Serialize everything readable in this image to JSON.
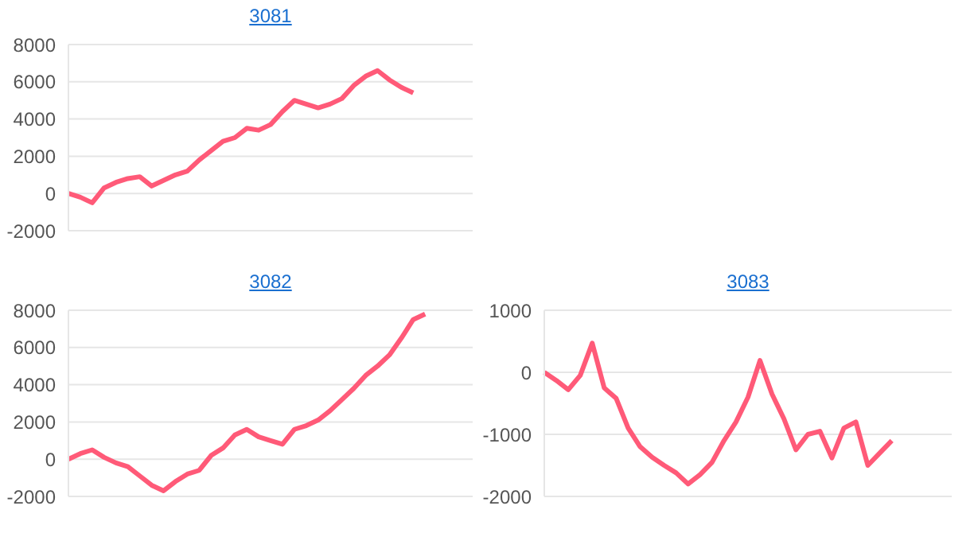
{
  "chart_data": [
    {
      "type": "line",
      "title": "3081",
      "categories": [
        null,
        null,
        null,
        null,
        null,
        null,
        null,
        null,
        null,
        null,
        null,
        null,
        null,
        null,
        null,
        null,
        null,
        null,
        null,
        null,
        null,
        null,
        null,
        null,
        null,
        null,
        null,
        null,
        null,
        null,
        null,
        null,
        null,
        null,
        null
      ],
      "values": [
        0,
        -200,
        -500,
        300,
        600,
        800,
        900,
        400,
        700,
        1000,
        1200,
        1800,
        2300,
        2800,
        3000,
        3500,
        3400,
        3700,
        4400,
        5000,
        4800,
        4600,
        4800,
        5100,
        5800,
        6300,
        6600,
        6100,
        5700,
        5400,
        null,
        null,
        null,
        null,
        null
      ],
      "color": "#ff5a78",
      "ylim": [
        -2000,
        8000
      ],
      "yticks": [
        -2000,
        0,
        2000,
        4000,
        6000,
        8000
      ],
      "grid": "y",
      "tick_labels": "y"
    },
    {
      "type": "line",
      "title": "3082",
      "categories": [
        null,
        null,
        null,
        null,
        null,
        null,
        null,
        null,
        null,
        null,
        null,
        null,
        null,
        null,
        null,
        null,
        null,
        null,
        null,
        null,
        null,
        null,
        null,
        null,
        null,
        null,
        null,
        null,
        null,
        null,
        null,
        null,
        null,
        null,
        null
      ],
      "values": [
        0,
        300,
        500,
        100,
        -200,
        -400,
        -900,
        -1400,
        -1700,
        -1200,
        -800,
        -600,
        200,
        600,
        1300,
        1600,
        1200,
        1000,
        800,
        1600,
        1800,
        2100,
        2600,
        3200,
        3800,
        4500,
        5000,
        5600,
        6500,
        7500,
        7800,
        null,
        null,
        null,
        null
      ],
      "color": "#ff5a78",
      "ylim": [
        -2000,
        8000
      ],
      "yticks": [
        -2000,
        0,
        2000,
        4000,
        6000,
        8000
      ],
      "grid": "y",
      "tick_labels": "y"
    },
    {
      "type": "line",
      "title": "3083",
      "categories": [
        null,
        null,
        null,
        null,
        null,
        null,
        null,
        null,
        null,
        null,
        null,
        null,
        null,
        null,
        null,
        null,
        null,
        null,
        null,
        null,
        null,
        null,
        null,
        null,
        null,
        null,
        null,
        null,
        null,
        null,
        null,
        null,
        null,
        null,
        null
      ],
      "values": [
        0,
        -130,
        -280,
        -50,
        470,
        -250,
        -420,
        -900,
        -1200,
        -1370,
        -1500,
        -1620,
        -1800,
        -1650,
        -1450,
        -1100,
        -800,
        -400,
        190,
        -350,
        -750,
        -1250,
        -1000,
        -950,
        -1380,
        -900,
        -800,
        -1500,
        -1300,
        -1100,
        null,
        null,
        null,
        null,
        null
      ],
      "color": "#ff5a78",
      "ylim": [
        -2000,
        1000
      ],
      "yticks": [
        -2000,
        -1000,
        0,
        1000
      ],
      "grid": "y",
      "tick_labels": "y"
    }
  ]
}
